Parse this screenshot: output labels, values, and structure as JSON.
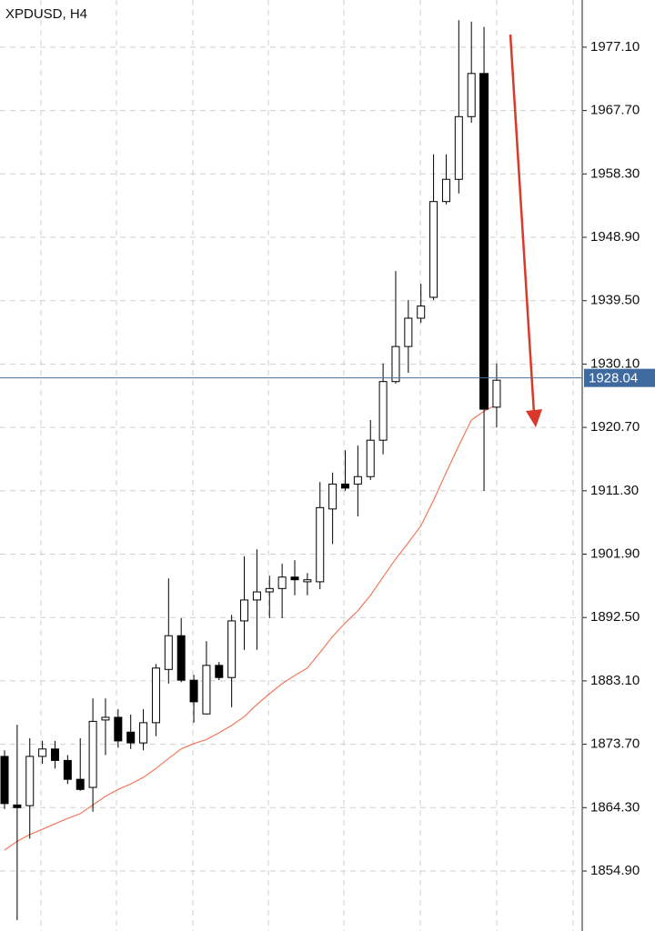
{
  "chart_data": {
    "type": "candlestick",
    "title": "XPDUSD, H4",
    "open": [
      1871.9,
      1864.7,
      1864.6,
      1871.9,
      1873.0,
      1871.3,
      1868.5,
      1867.3,
      1877.3,
      1877.7,
      1875.5,
      1873.9,
      1876.9,
      1884.8,
      1889.8,
      1883.2,
      1878.2,
      1885.4,
      1883.6,
      1892.0,
      1895.1,
      1896.3,
      1896.8,
      1898.5,
      1897.8,
      1897.8,
      1908.6,
      1912.3,
      1912.3,
      1913.4,
      1918.8,
      1927.5,
      1932.7,
      1936.9,
      1940.0,
      1954.2,
      1957.5,
      1966.8,
      1973.2,
      1923.7
    ],
    "high": [
      1872.8,
      1876.6,
      1874.6,
      1874.2,
      1874.2,
      1872.1,
      1874.6,
      1880.5,
      1880.5,
      1878.9,
      1878.1,
      1878.9,
      1885.6,
      1898.3,
      1892.4,
      1884.0,
      1889.0,
      1885.9,
      1892.9,
      1901.6,
      1902.6,
      1898.7,
      1900.5,
      1901.0,
      1899.1,
      1912.6,
      1914.0,
      1917.3,
      1918.0,
      1921.8,
      1930.2,
      1943.9,
      1939.6,
      1942.0,
      1961.2,
      1961.2,
      1981.1,
      1980.9,
      1980.1,
      1930.2
    ],
    "low": [
      1864.1,
      1847.6,
      1859.7,
      1870.8,
      1870.1,
      1867.8,
      1866.8,
      1863.7,
      1872.1,
      1873.2,
      1873.0,
      1872.8,
      1874.9,
      1882.7,
      1882.9,
      1876.9,
      1878.2,
      1883.2,
      1879.2,
      1887.7,
      1887.7,
      1892.4,
      1892.4,
      1895.8,
      1895.8,
      1896.7,
      1903.4,
      1911.3,
      1907.5,
      1912.9,
      1916.7,
      1927.2,
      1928.8,
      1936.2,
      1939.6,
      1953.8,
      1955.4,
      1965.9,
      1911.3,
      1920.7
    ],
    "close": [
      1864.9,
      1864.3,
      1871.9,
      1873.0,
      1871.3,
      1868.5,
      1867.0,
      1877.1,
      1877.7,
      1874.2,
      1873.9,
      1876.9,
      1885.0,
      1889.8,
      1883.2,
      1880.0,
      1885.4,
      1883.6,
      1892.0,
      1895.1,
      1896.3,
      1896.8,
      1898.5,
      1898.1,
      1898.1,
      1908.8,
      1912.3,
      1911.7,
      1913.4,
      1918.8,
      1927.5,
      1932.7,
      1936.9,
      1938.7,
      1954.2,
      1957.5,
      1966.8,
      1973.2,
      1923.4,
      1927.7
    ],
    "ma": {
      "color": "#f07a5e",
      "values": [
        1858.0,
        1859.3,
        1860.3,
        1861.1,
        1861.9,
        1862.7,
        1863.4,
        1864.7,
        1866.0,
        1867.0,
        1867.8,
        1868.8,
        1870.1,
        1871.6,
        1873.0,
        1873.8,
        1874.4,
        1875.4,
        1876.5,
        1877.8,
        1879.6,
        1881.2,
        1882.7,
        1883.9,
        1885.0,
        1887.3,
        1889.7,
        1891.7,
        1893.5,
        1895.8,
        1898.5,
        1901.2,
        1903.6,
        1906.1,
        1909.9,
        1914.0,
        1918.0,
        1921.8,
        1923.1,
        1924.1
      ]
    },
    "last_price": 1928.04,
    "ylim": [
      1846.0,
      1984.1
    ],
    "yticks": [
      {
        "value": 1977.1,
        "label": "1977.10"
      },
      {
        "value": 1967.7,
        "label": "1967.70"
      },
      {
        "value": 1958.3,
        "label": "1958.30"
      },
      {
        "value": 1948.9,
        "label": "1948.90"
      },
      {
        "value": 1939.5,
        "label": "1939.50"
      },
      {
        "value": 1930.1,
        "label": "1930.10"
      },
      {
        "value": 1920.7,
        "label": "1920.70"
      },
      {
        "value": 1911.3,
        "label": "1911.30"
      },
      {
        "value": 1901.9,
        "label": "1901.90"
      },
      {
        "value": 1892.5,
        "label": "1892.50"
      },
      {
        "value": 1883.1,
        "label": "1883.10"
      },
      {
        "value": 1873.7,
        "label": "1873.70"
      },
      {
        "value": 1864.3,
        "label": "1864.30"
      },
      {
        "value": 1854.9,
        "label": "1854.90"
      }
    ],
    "grid": true
  }
}
